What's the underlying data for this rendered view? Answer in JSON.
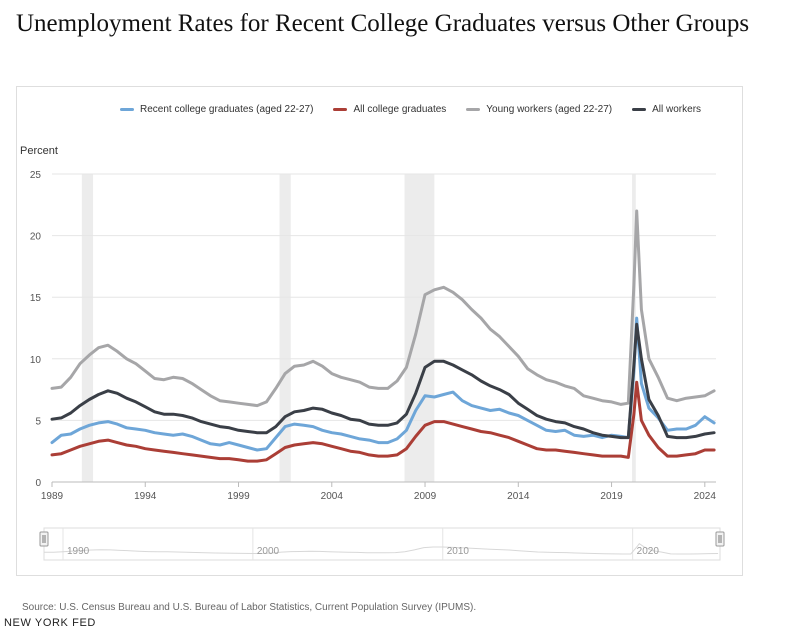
{
  "title": "Unemployment Rates for Recent College Graduates versus Other Groups",
  "source": "Source: U.S. Census Bureau and U.S. Bureau of Labor Statistics, Current Population Survey (IPUMS).",
  "brand": "NEW YORK FED",
  "navigator_labels": [
    "1990",
    "2000",
    "2010",
    "2020"
  ],
  "colors": {
    "recent_grads": "#6ea6d8",
    "all_grads": "#ab3e36",
    "young_workers": "#a6a6a8",
    "all_workers": "#3a3f47",
    "recession": "#ececec",
    "grid": "#e6e6e6"
  },
  "chart_data": {
    "type": "line",
    "ylabel": "Percent",
    "xlabel": "",
    "ylim": [
      0,
      25
    ],
    "yticks": [
      0,
      5,
      10,
      15,
      20,
      25
    ],
    "xticks": [
      1989,
      1994,
      1999,
      2004,
      2009,
      2014,
      2019,
      2024
    ],
    "xlim": [
      1989.0,
      2024.6
    ],
    "grid": true,
    "legend_position": "top",
    "recessions": [
      [
        1990.6,
        1991.2
      ],
      [
        2001.2,
        2001.8
      ],
      [
        2007.9,
        2009.5
      ],
      [
        2020.1,
        2020.3
      ]
    ],
    "series": [
      {
        "name": "Recent college graduates (aged 22-27)",
        "color_key": "recent_grads",
        "points": [
          [
            1989.0,
            3.2
          ],
          [
            1989.5,
            3.8
          ],
          [
            1990.0,
            3.9
          ],
          [
            1990.5,
            4.3
          ],
          [
            1991.0,
            4.6
          ],
          [
            1991.5,
            4.8
          ],
          [
            1992.0,
            4.9
          ],
          [
            1992.5,
            4.7
          ],
          [
            1993.0,
            4.4
          ],
          [
            1993.5,
            4.3
          ],
          [
            1994.0,
            4.2
          ],
          [
            1994.5,
            4.0
          ],
          [
            1995.0,
            3.9
          ],
          [
            1995.5,
            3.8
          ],
          [
            1996.0,
            3.9
          ],
          [
            1996.5,
            3.7
          ],
          [
            1997.0,
            3.4
          ],
          [
            1997.5,
            3.1
          ],
          [
            1998.0,
            3.0
          ],
          [
            1998.5,
            3.2
          ],
          [
            1999.0,
            3.0
          ],
          [
            1999.5,
            2.8
          ],
          [
            2000.0,
            2.6
          ],
          [
            2000.5,
            2.7
          ],
          [
            2001.0,
            3.6
          ],
          [
            2001.5,
            4.5
          ],
          [
            2002.0,
            4.7
          ],
          [
            2002.5,
            4.6
          ],
          [
            2003.0,
            4.5
          ],
          [
            2003.5,
            4.2
          ],
          [
            2004.0,
            4.0
          ],
          [
            2004.5,
            3.9
          ],
          [
            2005.0,
            3.7
          ],
          [
            2005.5,
            3.5
          ],
          [
            2006.0,
            3.4
          ],
          [
            2006.5,
            3.2
          ],
          [
            2007.0,
            3.2
          ],
          [
            2007.5,
            3.5
          ],
          [
            2008.0,
            4.2
          ],
          [
            2008.5,
            5.8
          ],
          [
            2009.0,
            7.0
          ],
          [
            2009.5,
            6.9
          ],
          [
            2010.0,
            7.1
          ],
          [
            2010.5,
            7.3
          ],
          [
            2011.0,
            6.6
          ],
          [
            2011.5,
            6.2
          ],
          [
            2012.0,
            6.0
          ],
          [
            2012.5,
            5.8
          ],
          [
            2013.0,
            5.9
          ],
          [
            2013.5,
            5.6
          ],
          [
            2014.0,
            5.4
          ],
          [
            2014.5,
            5.0
          ],
          [
            2015.0,
            4.6
          ],
          [
            2015.5,
            4.2
          ],
          [
            2016.0,
            4.1
          ],
          [
            2016.5,
            4.2
          ],
          [
            2017.0,
            3.8
          ],
          [
            2017.5,
            3.7
          ],
          [
            2018.0,
            3.8
          ],
          [
            2018.5,
            3.6
          ],
          [
            2019.0,
            3.8
          ],
          [
            2019.5,
            3.7
          ],
          [
            2019.9,
            3.6
          ],
          [
            2020.2,
            9.0
          ],
          [
            2020.35,
            13.3
          ],
          [
            2020.6,
            8.0
          ],
          [
            2021.0,
            6.0
          ],
          [
            2021.5,
            5.2
          ],
          [
            2022.0,
            4.2
          ],
          [
            2022.5,
            4.3
          ],
          [
            2023.0,
            4.3
          ],
          [
            2023.5,
            4.6
          ],
          [
            2024.0,
            5.3
          ],
          [
            2024.5,
            4.8
          ]
        ]
      },
      {
        "name": "All college graduates",
        "color_key": "all_grads",
        "points": [
          [
            1989.0,
            2.2
          ],
          [
            1989.5,
            2.3
          ],
          [
            1990.0,
            2.6
          ],
          [
            1990.5,
            2.9
          ],
          [
            1991.0,
            3.1
          ],
          [
            1991.5,
            3.3
          ],
          [
            1992.0,
            3.4
          ],
          [
            1992.5,
            3.2
          ],
          [
            1993.0,
            3.0
          ],
          [
            1993.5,
            2.9
          ],
          [
            1994.0,
            2.7
          ],
          [
            1994.5,
            2.6
          ],
          [
            1995.0,
            2.5
          ],
          [
            1995.5,
            2.4
          ],
          [
            1996.0,
            2.3
          ],
          [
            1996.5,
            2.2
          ],
          [
            1997.0,
            2.1
          ],
          [
            1997.5,
            2.0
          ],
          [
            1998.0,
            1.9
          ],
          [
            1998.5,
            1.9
          ],
          [
            1999.0,
            1.8
          ],
          [
            1999.5,
            1.7
          ],
          [
            2000.0,
            1.7
          ],
          [
            2000.5,
            1.8
          ],
          [
            2001.0,
            2.3
          ],
          [
            2001.5,
            2.8
          ],
          [
            2002.0,
            3.0
          ],
          [
            2002.5,
            3.1
          ],
          [
            2003.0,
            3.2
          ],
          [
            2003.5,
            3.1
          ],
          [
            2004.0,
            2.9
          ],
          [
            2004.5,
            2.7
          ],
          [
            2005.0,
            2.5
          ],
          [
            2005.5,
            2.4
          ],
          [
            2006.0,
            2.2
          ],
          [
            2006.5,
            2.1
          ],
          [
            2007.0,
            2.1
          ],
          [
            2007.5,
            2.2
          ],
          [
            2008.0,
            2.7
          ],
          [
            2008.5,
            3.7
          ],
          [
            2009.0,
            4.6
          ],
          [
            2009.5,
            4.9
          ],
          [
            2010.0,
            4.9
          ],
          [
            2010.5,
            4.7
          ],
          [
            2011.0,
            4.5
          ],
          [
            2011.5,
            4.3
          ],
          [
            2012.0,
            4.1
          ],
          [
            2012.5,
            4.0
          ],
          [
            2013.0,
            3.8
          ],
          [
            2013.5,
            3.6
          ],
          [
            2014.0,
            3.3
          ],
          [
            2014.5,
            3.0
          ],
          [
            2015.0,
            2.7
          ],
          [
            2015.5,
            2.6
          ],
          [
            2016.0,
            2.6
          ],
          [
            2016.5,
            2.5
          ],
          [
            2017.0,
            2.4
          ],
          [
            2017.5,
            2.3
          ],
          [
            2018.0,
            2.2
          ],
          [
            2018.5,
            2.1
          ],
          [
            2019.0,
            2.1
          ],
          [
            2019.5,
            2.1
          ],
          [
            2019.9,
            2.0
          ],
          [
            2020.2,
            5.5
          ],
          [
            2020.35,
            8.1
          ],
          [
            2020.6,
            5.0
          ],
          [
            2021.0,
            3.8
          ],
          [
            2021.5,
            2.8
          ],
          [
            2022.0,
            2.1
          ],
          [
            2022.5,
            2.1
          ],
          [
            2023.0,
            2.2
          ],
          [
            2023.5,
            2.3
          ],
          [
            2024.0,
            2.6
          ],
          [
            2024.5,
            2.6
          ]
        ]
      },
      {
        "name": "Young workers (aged 22-27)",
        "color_key": "young_workers",
        "points": [
          [
            1989.0,
            7.6
          ],
          [
            1989.5,
            7.7
          ],
          [
            1990.0,
            8.5
          ],
          [
            1990.5,
            9.6
          ],
          [
            1991.0,
            10.3
          ],
          [
            1991.5,
            10.9
          ],
          [
            1992.0,
            11.1
          ],
          [
            1992.5,
            10.6
          ],
          [
            1993.0,
            10.0
          ],
          [
            1993.5,
            9.6
          ],
          [
            1994.0,
            9.0
          ],
          [
            1994.5,
            8.4
          ],
          [
            1995.0,
            8.3
          ],
          [
            1995.5,
            8.5
          ],
          [
            1996.0,
            8.4
          ],
          [
            1996.5,
            8.0
          ],
          [
            1997.0,
            7.5
          ],
          [
            1997.5,
            7.0
          ],
          [
            1998.0,
            6.6
          ],
          [
            1998.5,
            6.5
          ],
          [
            1999.0,
            6.4
          ],
          [
            1999.5,
            6.3
          ],
          [
            2000.0,
            6.2
          ],
          [
            2000.5,
            6.5
          ],
          [
            2001.0,
            7.6
          ],
          [
            2001.5,
            8.8
          ],
          [
            2002.0,
            9.4
          ],
          [
            2002.5,
            9.5
          ],
          [
            2003.0,
            9.8
          ],
          [
            2003.5,
            9.4
          ],
          [
            2004.0,
            8.8
          ],
          [
            2004.5,
            8.5
          ],
          [
            2005.0,
            8.3
          ],
          [
            2005.5,
            8.1
          ],
          [
            2006.0,
            7.7
          ],
          [
            2006.5,
            7.6
          ],
          [
            2007.0,
            7.6
          ],
          [
            2007.5,
            8.2
          ],
          [
            2008.0,
            9.3
          ],
          [
            2008.5,
            12.0
          ],
          [
            2009.0,
            15.2
          ],
          [
            2009.5,
            15.6
          ],
          [
            2010.0,
            15.8
          ],
          [
            2010.5,
            15.4
          ],
          [
            2011.0,
            14.8
          ],
          [
            2011.5,
            14.0
          ],
          [
            2012.0,
            13.3
          ],
          [
            2012.5,
            12.4
          ],
          [
            2013.0,
            11.8
          ],
          [
            2013.5,
            11.0
          ],
          [
            2014.0,
            10.2
          ],
          [
            2014.5,
            9.2
          ],
          [
            2015.0,
            8.7
          ],
          [
            2015.5,
            8.3
          ],
          [
            2016.0,
            8.1
          ],
          [
            2016.5,
            7.8
          ],
          [
            2017.0,
            7.6
          ],
          [
            2017.5,
            7.0
          ],
          [
            2018.0,
            6.8
          ],
          [
            2018.5,
            6.6
          ],
          [
            2019.0,
            6.5
          ],
          [
            2019.5,
            6.3
          ],
          [
            2019.9,
            6.4
          ],
          [
            2020.2,
            16.0
          ],
          [
            2020.35,
            22.0
          ],
          [
            2020.6,
            14.0
          ],
          [
            2021.0,
            10.0
          ],
          [
            2021.5,
            8.5
          ],
          [
            2022.0,
            6.8
          ],
          [
            2022.5,
            6.6
          ],
          [
            2023.0,
            6.8
          ],
          [
            2023.5,
            6.9
          ],
          [
            2024.0,
            7.0
          ],
          [
            2024.5,
            7.4
          ]
        ]
      },
      {
        "name": "All workers",
        "color_key": "all_workers",
        "points": [
          [
            1989.0,
            5.1
          ],
          [
            1989.5,
            5.2
          ],
          [
            1990.0,
            5.6
          ],
          [
            1990.5,
            6.2
          ],
          [
            1991.0,
            6.7
          ],
          [
            1991.5,
            7.1
          ],
          [
            1992.0,
            7.4
          ],
          [
            1992.5,
            7.2
          ],
          [
            1993.0,
            6.8
          ],
          [
            1993.5,
            6.5
          ],
          [
            1994.0,
            6.1
          ],
          [
            1994.5,
            5.7
          ],
          [
            1995.0,
            5.5
          ],
          [
            1995.5,
            5.5
          ],
          [
            1996.0,
            5.4
          ],
          [
            1996.5,
            5.2
          ],
          [
            1997.0,
            4.9
          ],
          [
            1997.5,
            4.7
          ],
          [
            1998.0,
            4.5
          ],
          [
            1998.5,
            4.4
          ],
          [
            1999.0,
            4.2
          ],
          [
            1999.5,
            4.1
          ],
          [
            2000.0,
            4.0
          ],
          [
            2000.5,
            4.0
          ],
          [
            2001.0,
            4.5
          ],
          [
            2001.5,
            5.3
          ],
          [
            2002.0,
            5.7
          ],
          [
            2002.5,
            5.8
          ],
          [
            2003.0,
            6.0
          ],
          [
            2003.5,
            5.9
          ],
          [
            2004.0,
            5.6
          ],
          [
            2004.5,
            5.4
          ],
          [
            2005.0,
            5.1
          ],
          [
            2005.5,
            5.0
          ],
          [
            2006.0,
            4.7
          ],
          [
            2006.5,
            4.6
          ],
          [
            2007.0,
            4.6
          ],
          [
            2007.5,
            4.8
          ],
          [
            2008.0,
            5.5
          ],
          [
            2008.5,
            7.2
          ],
          [
            2009.0,
            9.3
          ],
          [
            2009.5,
            9.8
          ],
          [
            2010.0,
            9.8
          ],
          [
            2010.5,
            9.5
          ],
          [
            2011.0,
            9.1
          ],
          [
            2011.5,
            8.7
          ],
          [
            2012.0,
            8.2
          ],
          [
            2012.5,
            7.8
          ],
          [
            2013.0,
            7.5
          ],
          [
            2013.5,
            7.1
          ],
          [
            2014.0,
            6.4
          ],
          [
            2014.5,
            5.9
          ],
          [
            2015.0,
            5.4
          ],
          [
            2015.5,
            5.1
          ],
          [
            2016.0,
            4.9
          ],
          [
            2016.5,
            4.8
          ],
          [
            2017.0,
            4.5
          ],
          [
            2017.5,
            4.3
          ],
          [
            2018.0,
            4.0
          ],
          [
            2018.5,
            3.8
          ],
          [
            2019.0,
            3.7
          ],
          [
            2019.5,
            3.6
          ],
          [
            2019.9,
            3.6
          ],
          [
            2020.2,
            9.5
          ],
          [
            2020.35,
            12.8
          ],
          [
            2020.6,
            10.0
          ],
          [
            2021.0,
            6.7
          ],
          [
            2021.5,
            5.4
          ],
          [
            2022.0,
            3.7
          ],
          [
            2022.5,
            3.6
          ],
          [
            2023.0,
            3.6
          ],
          [
            2023.5,
            3.7
          ],
          [
            2024.0,
            3.9
          ],
          [
            2024.5,
            4.0
          ]
        ]
      }
    ]
  }
}
